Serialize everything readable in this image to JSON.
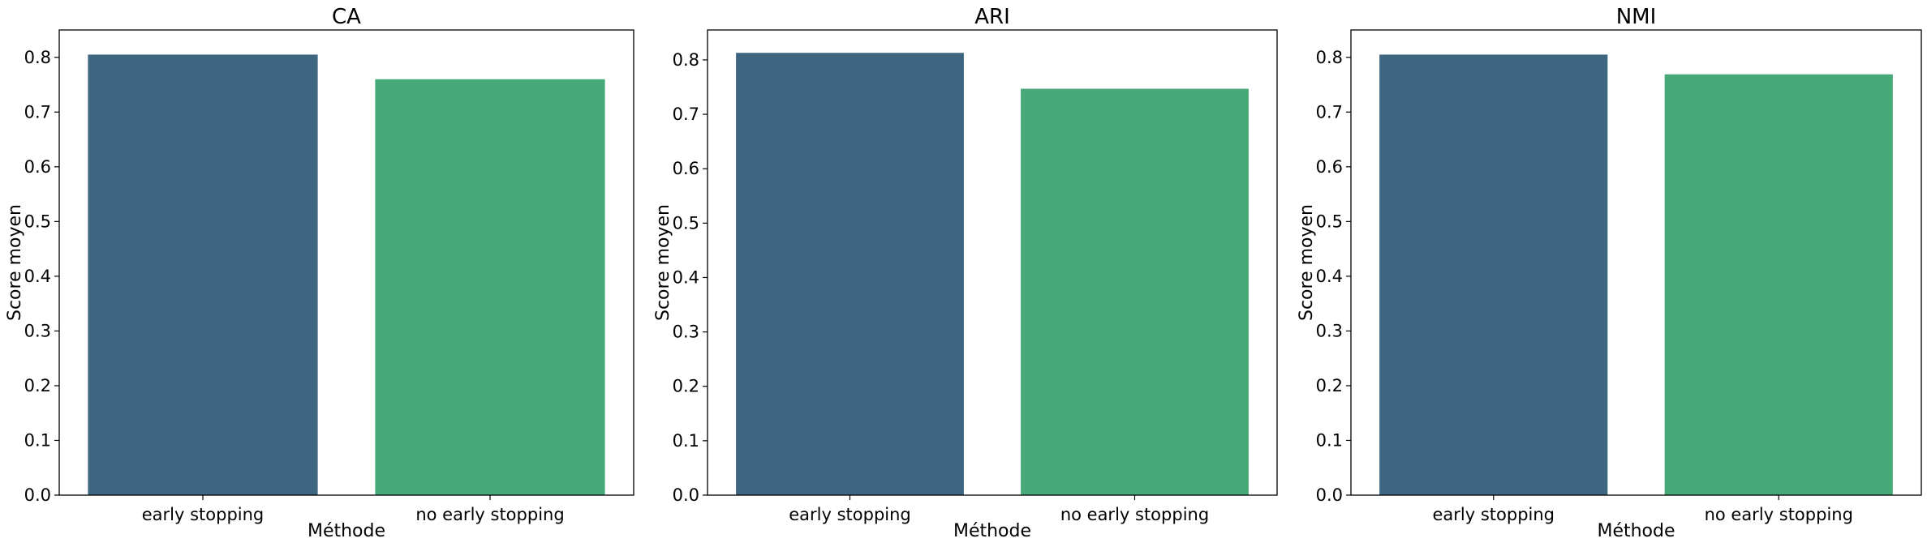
{
  "chart_data": [
    {
      "type": "bar",
      "title": "CA",
      "xlabel": "Méthode",
      "ylabel": "Score moyen",
      "categories": [
        "early stopping",
        "no early stopping"
      ],
      "values": [
        0.805,
        0.76
      ],
      "colors": [
        "#3e6681",
        "#47a878"
      ],
      "ylim": [
        0,
        0.85
      ],
      "yticks": [
        "0.0",
        "0.1",
        "0.2",
        "0.3",
        "0.4",
        "0.5",
        "0.6",
        "0.7",
        "0.8"
      ],
      "grid": false
    },
    {
      "type": "bar",
      "title": "ARI",
      "xlabel": "Méthode",
      "ylabel": "Score moyen",
      "categories": [
        "early stopping",
        "no early stopping"
      ],
      "values": [
        0.813,
        0.747
      ],
      "colors": [
        "#3e6681",
        "#47a878"
      ],
      "ylim": [
        0,
        0.855
      ],
      "yticks": [
        "0.0",
        "0.1",
        "0.2",
        "0.3",
        "0.4",
        "0.5",
        "0.6",
        "0.7",
        "0.8"
      ],
      "grid": false
    },
    {
      "type": "bar",
      "title": "NMI",
      "xlabel": "Méthode",
      "ylabel": "Score moyen",
      "categories": [
        "early stopping",
        "no early stopping"
      ],
      "values": [
        0.805,
        0.769
      ],
      "colors": [
        "#3e6681",
        "#47a878"
      ],
      "ylim": [
        0,
        0.85
      ],
      "yticks": [
        "0.0",
        "0.1",
        "0.2",
        "0.3",
        "0.4",
        "0.5",
        "0.6",
        "0.7",
        "0.8"
      ],
      "grid": false
    }
  ]
}
